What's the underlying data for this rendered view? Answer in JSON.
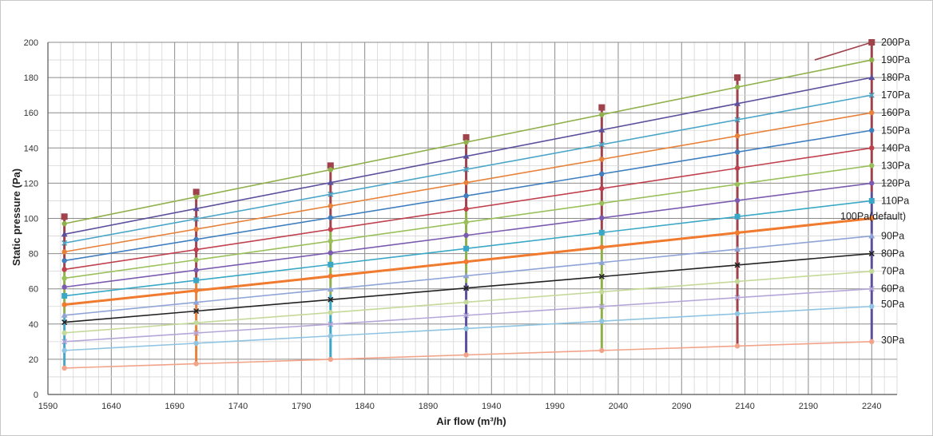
{
  "chart_data": {
    "type": "line",
    "xlabel": "Air flow (m³/h)",
    "ylabel": "Static pressure (Pa)",
    "xlim": [
      1590,
      2260
    ],
    "ylim": [
      0,
      200
    ],
    "xticks": [
      1590,
      1640,
      1690,
      1740,
      1790,
      1840,
      1890,
      1940,
      1990,
      2040,
      2090,
      2140,
      2190,
      2240
    ],
    "yticks": [
      0,
      20,
      40,
      60,
      80,
      100,
      120,
      140,
      160,
      180,
      200
    ],
    "grid": true,
    "legend_position": "right",
    "series": [
      {
        "name": "200Pa",
        "color": "#a0424b",
        "x": [
          2195,
          2240
        ],
        "y": [
          190,
          200
        ],
        "marker": "square"
      },
      {
        "name": "190Pa",
        "color": "#8fb04a",
        "x": [
          1603,
          2240
        ],
        "y": [
          97,
          190
        ]
      },
      {
        "name": "180Pa",
        "color": "#5c4f9c",
        "x": [
          1603,
          2240
        ],
        "y": [
          91,
          180
        ],
        "marker": "triangle"
      },
      {
        "name": "170Pa",
        "color": "#4aa6c8",
        "x": [
          1603,
          2240
        ],
        "y": [
          86,
          170
        ],
        "marker": "x"
      },
      {
        "name": "160Pa",
        "color": "#e8823a",
        "x": [
          1603,
          2240
        ],
        "y": [
          81,
          160
        ],
        "marker": "circle"
      },
      {
        "name": "150Pa",
        "color": "#3f7fc0",
        "x": [
          1603,
          2240
        ],
        "y": [
          76,
          150
        ]
      },
      {
        "name": "140Pa",
        "color": "#c0414d",
        "x": [
          1603,
          2240
        ],
        "y": [
          71,
          140
        ]
      },
      {
        "name": "130Pa",
        "color": "#99c05a",
        "x": [
          1603,
          2240
        ],
        "y": [
          66,
          130
        ]
      },
      {
        "name": "120Pa",
        "color": "#7b5bb0",
        "x": [
          1603,
          2240
        ],
        "y": [
          61,
          120
        ],
        "marker": "circle"
      },
      {
        "name": "110Pa",
        "color": "#39a7c6",
        "x": [
          1603,
          2240
        ],
        "y": [
          56,
          110
        ],
        "marker": "square"
      },
      {
        "name": "100Pa(default)",
        "color": "#f07a2e",
        "x": [
          1603,
          2240
        ],
        "y": [
          51,
          100
        ]
      },
      {
        "name": "90Pa",
        "color": "#8ea4d6",
        "x": [
          1603,
          2240
        ],
        "y": [
          45,
          90
        ],
        "marker": "triangle"
      },
      {
        "name": "80Pa",
        "color": "#222222",
        "x": [
          1603,
          2240
        ],
        "y": [
          41,
          80
        ],
        "marker": "x"
      },
      {
        "name": "70Pa",
        "color": "#c4d99a",
        "x": [
          1603,
          2240
        ],
        "y": [
          35,
          70
        ]
      },
      {
        "name": "60Pa",
        "color": "#b4a6d8",
        "x": [
          1603,
          2240
        ],
        "y": [
          30,
          60
        ],
        "marker": "x"
      },
      {
        "name": "50Pa",
        "color": "#8fc4e2",
        "x": [
          1603,
          2240
        ],
        "y": [
          25,
          50
        ]
      },
      {
        "name": "30Pa",
        "color": "#f2a48a",
        "x": [
          1603,
          2240
        ],
        "y": [
          15,
          30
        ],
        "marker": "circle"
      }
    ],
    "vertical_lines": [
      {
        "x": 1603,
        "ymin": 15,
        "ymax": 101,
        "colors": [
          "#4aa6c8",
          "#8fb04a",
          "#a0424b"
        ]
      },
      {
        "x": 1707,
        "ymin": 17,
        "ymax": 115,
        "colors": [
          "#e8823a",
          "#a0424b"
        ]
      },
      {
        "x": 1813,
        "ymin": 20,
        "ymax": 130,
        "colors": [
          "#39a7c6",
          "#8fb04a",
          "#a0424b"
        ]
      },
      {
        "x": 1920,
        "ymin": 22,
        "ymax": 146,
        "colors": [
          "#5c4f9c",
          "#8fb04a",
          "#a0424b"
        ]
      },
      {
        "x": 2027,
        "ymin": 24,
        "ymax": 163,
        "colors": [
          "#8fb04a",
          "#a0424b"
        ]
      },
      {
        "x": 2134,
        "ymin": 27,
        "ymax": 180,
        "colors": [
          "#a0424b",
          "#a0424b"
        ]
      },
      {
        "x": 2240,
        "ymin": 30,
        "ymax": 200,
        "colors": [
          "#5c4f9c",
          "#a0424b"
        ]
      }
    ]
  }
}
